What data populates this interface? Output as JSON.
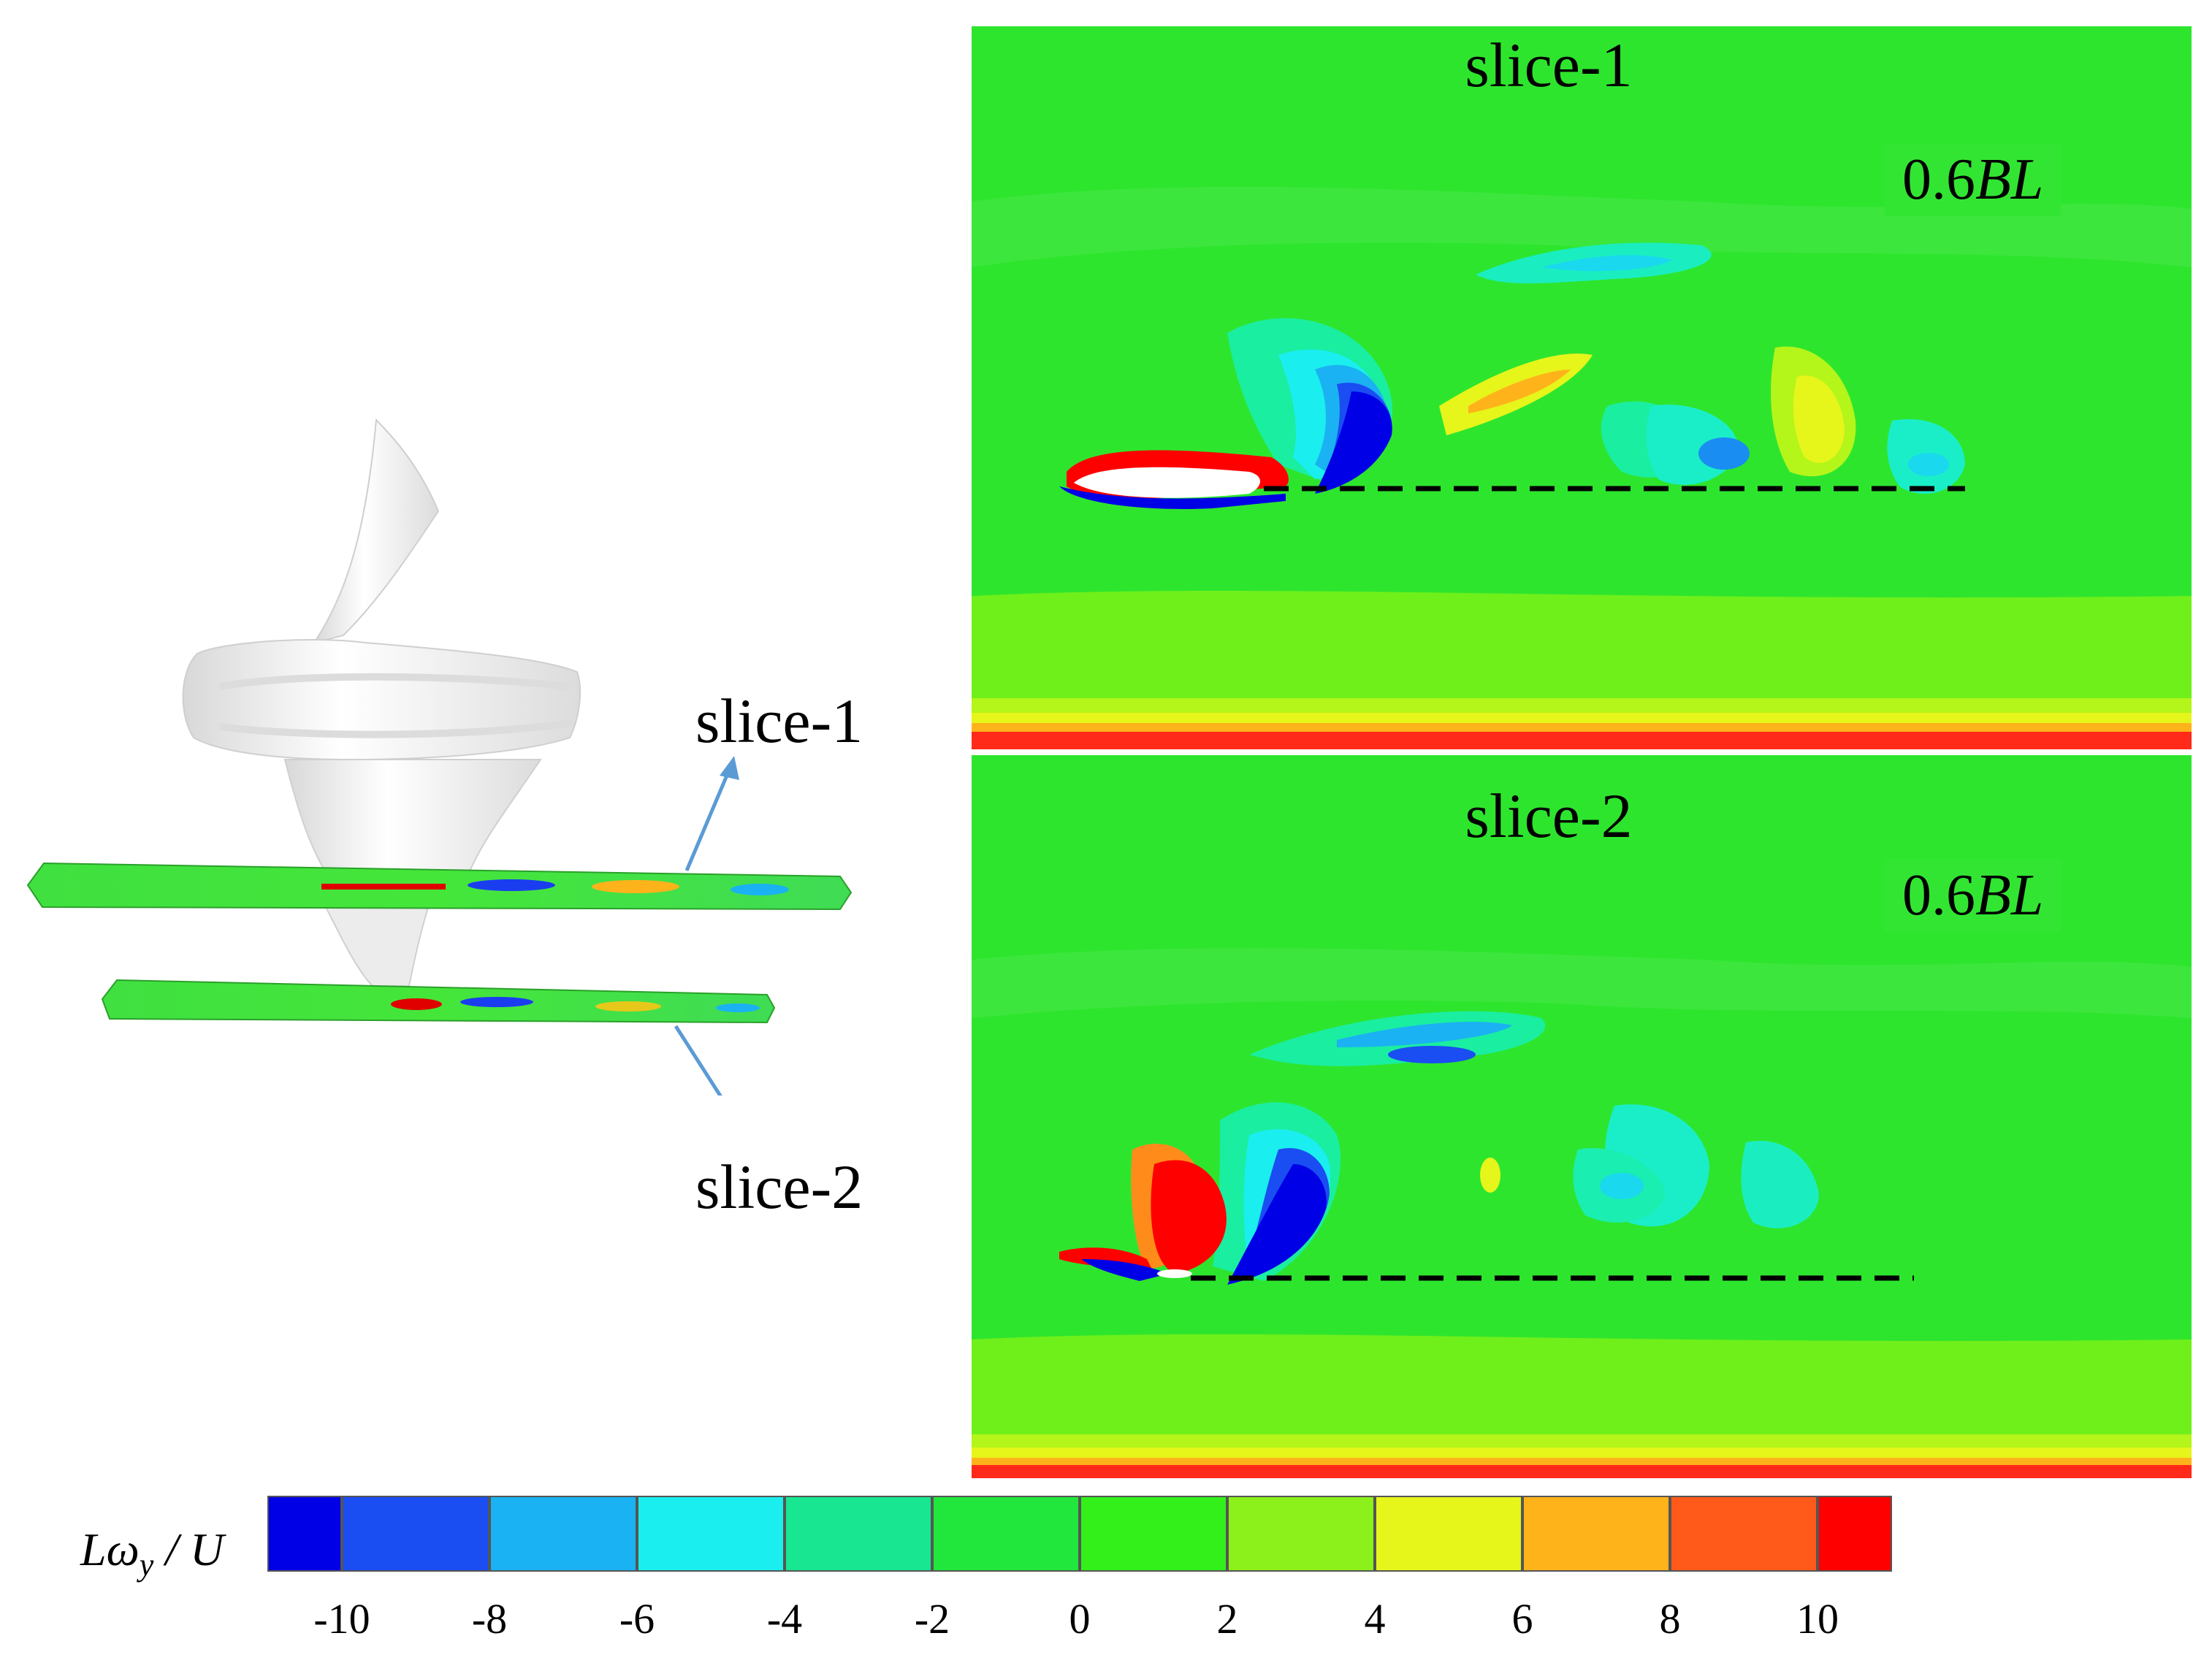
{
  "left_labels": {
    "slice1": "slice-1",
    "slice2": "slice-2"
  },
  "panels": [
    {
      "title": "slice-1",
      "scale_value": "0.6",
      "scale_unit": "BL"
    },
    {
      "title": "slice-2",
      "scale_value": "0.6",
      "scale_unit": "BL"
    }
  ],
  "colorbar": {
    "title_main": "Lω",
    "title_sub": "y",
    "title_tail": " / U",
    "levels": [
      {
        "value": -10,
        "label": "-10"
      },
      {
        "value": -8,
        "label": "-8"
      },
      {
        "value": -6,
        "label": "-6"
      },
      {
        "value": -4,
        "label": "-4"
      },
      {
        "value": -2,
        "label": "-2"
      },
      {
        "value": 0,
        "label": "0"
      },
      {
        "value": 2,
        "label": "2"
      },
      {
        "value": 4,
        "label": "4"
      },
      {
        "value": 6,
        "label": "6"
      },
      {
        "value": 8,
        "label": "8"
      },
      {
        "value": 10,
        "label": "10"
      }
    ],
    "colors": [
      "#0000e6",
      "#1a4df2",
      "#1ab2f2",
      "#1aeeee",
      "#19e690",
      "#21e63c",
      "#33f01a",
      "#8cf01a",
      "#e6f51a",
      "#ffb31a",
      "#ff5a1a",
      "#ff0000"
    ]
  },
  "colors": {
    "field_green": "#2ee52e",
    "vortex_neg": "#0000e6",
    "vortex_pos": "#ff0000",
    "arrow": "#5b9bd5",
    "body": "#f0f0f0"
  }
}
